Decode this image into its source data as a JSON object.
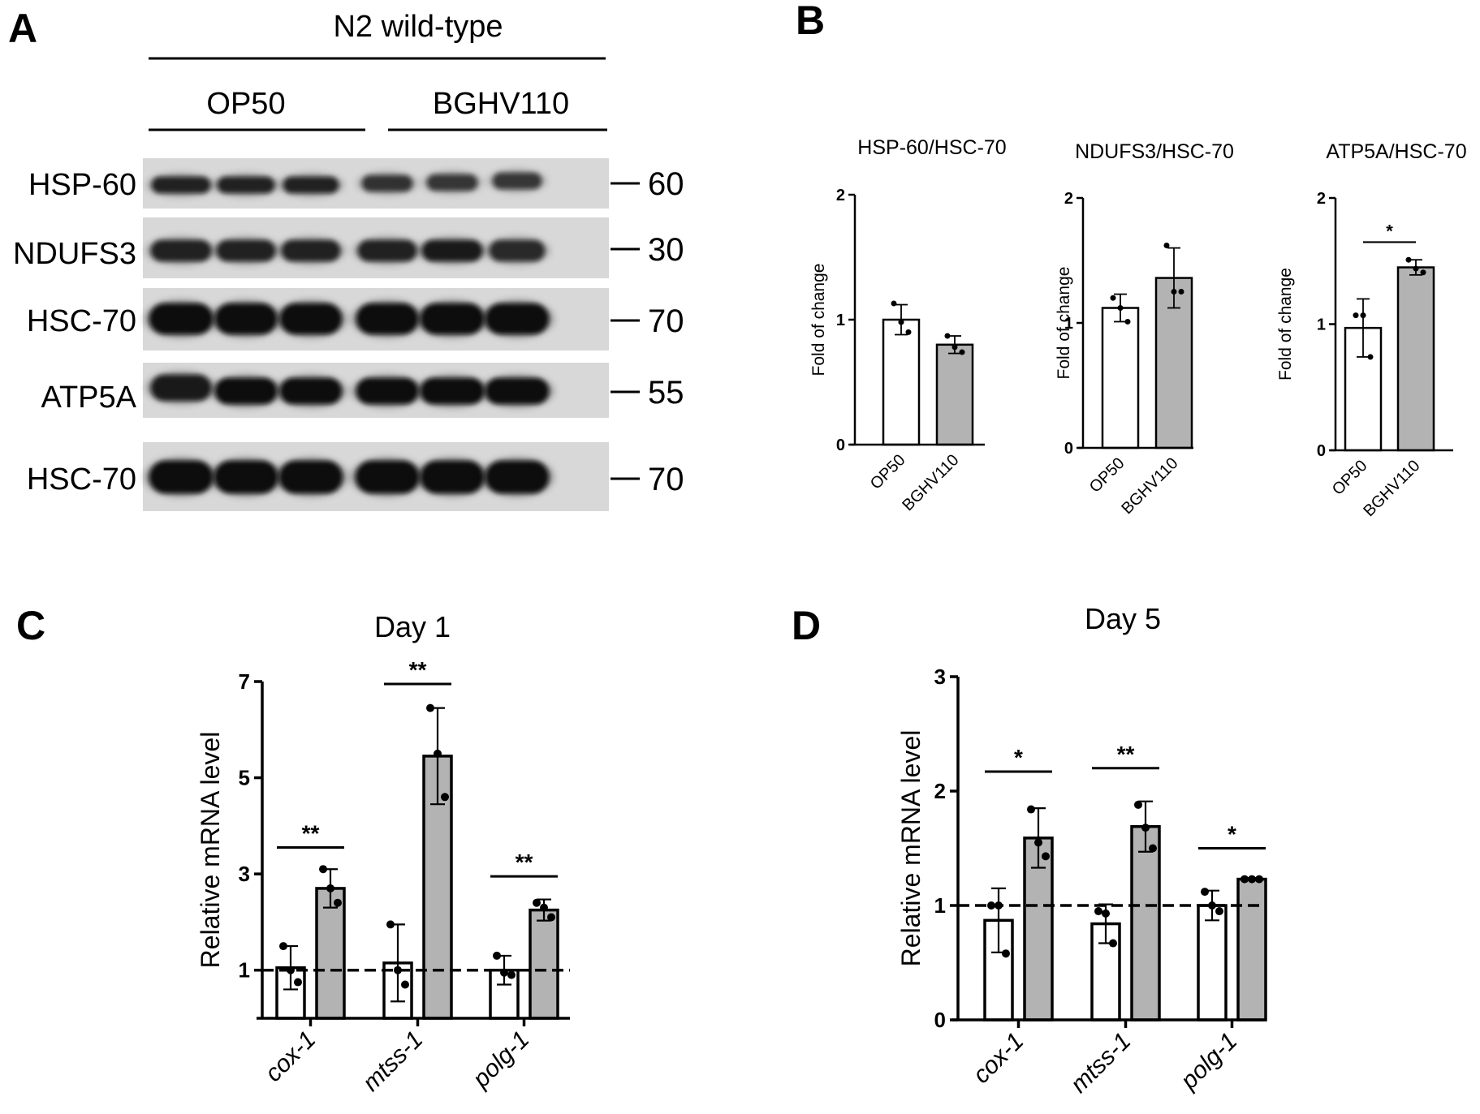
{
  "panel_labels": {
    "a": "A",
    "b": "B",
    "c": "C",
    "d": "D"
  },
  "western_blot": {
    "strain": "N2 wild-type",
    "conditions": [
      "OP50",
      "BGHV110"
    ],
    "rows": [
      {
        "protein": "HSP-60",
        "mw": "60"
      },
      {
        "protein": "NDUFS3",
        "mw": "30"
      },
      {
        "protein": "HSC-70",
        "mw": "70"
      },
      {
        "protein": "ATP5A",
        "mw": "55"
      },
      {
        "protein": "HSC-70",
        "mw": "70"
      }
    ]
  },
  "colors": {
    "control_bar": "#ffffff",
    "treated_bar": "#b3b3b3",
    "ink": "#000000"
  },
  "chart_data": [
    {
      "type": "bar",
      "panel": "B",
      "title": "HSP-60/HSC-70",
      "ylabel": "Fold of change",
      "categories": [
        "OP50",
        "BGHV110"
      ],
      "values": [
        1.0,
        0.8
      ],
      "errors": [
        0.12,
        0.07
      ],
      "points": [
        [
          1.13,
          0.98,
          0.9
        ],
        [
          0.87,
          0.78,
          0.74
        ]
      ],
      "yticks": [
        "0",
        "1",
        "2"
      ],
      "ylim": [
        0,
        2
      ],
      "significance": [],
      "bar_colors": [
        "#ffffff",
        "#b3b3b3"
      ]
    },
    {
      "type": "bar",
      "panel": "B",
      "title": "NDUFS3/HSC-70",
      "ylabel": "Fold of change",
      "categories": [
        "OP50",
        "BGHV110"
      ],
      "values": [
        1.12,
        1.36
      ],
      "errors": [
        0.11,
        0.24
      ],
      "points": [
        [
          1.2,
          1.12,
          1.01
        ],
        [
          1.62,
          1.25,
          1.25
        ]
      ],
      "yticks": [
        "0",
        "1",
        "2"
      ],
      "ylim": [
        0,
        2
      ],
      "significance": [],
      "bar_colors": [
        "#ffffff",
        "#b3b3b3"
      ]
    },
    {
      "type": "bar",
      "panel": "B",
      "title": "ATP5A/HSC-70",
      "ylabel": "Fold of change",
      "categories": [
        "OP50",
        "BGHV110"
      ],
      "values": [
        0.97,
        1.45
      ],
      "errors": [
        0.23,
        0.06
      ],
      "points": [
        [
          1.07,
          1.07,
          0.74
        ],
        [
          1.51,
          1.44,
          1.41
        ]
      ],
      "yticks": [
        "0",
        "1",
        "2"
      ],
      "ylim": [
        0,
        2
      ],
      "significance": [
        {
          "groups": [
            0,
            1
          ],
          "label": "*",
          "y": 1.65
        }
      ],
      "bar_colors": [
        "#ffffff",
        "#b3b3b3"
      ]
    },
    {
      "type": "bar",
      "panel": "C",
      "title": "Day 1",
      "ylabel": "Relative mRNA level",
      "categories": [
        "cox-1",
        "mtss-1",
        "polg-1"
      ],
      "series": [
        {
          "values": [
            1.05,
            1.15,
            1.0
          ],
          "errors": [
            0.45,
            0.8,
            0.3
          ],
          "points": [
            [
              1.5,
              1.0,
              0.75
            ],
            [
              1.95,
              1.0,
              0.7
            ],
            [
              1.3,
              0.95,
              0.9
            ]
          ]
        },
        {
          "values": [
            2.7,
            5.45,
            2.25
          ],
          "errors": [
            0.4,
            1.0,
            0.22
          ],
          "points": [
            [
              3.1,
              2.7,
              2.4
            ],
            [
              6.45,
              5.5,
              4.6
            ],
            [
              2.4,
              2.3,
              2.1
            ]
          ]
        }
      ],
      "reference_line": 1,
      "yticks": [
        "1",
        "3",
        "5",
        "7"
      ],
      "ylim": [
        0,
        7
      ],
      "significance": [
        {
          "category": 0,
          "label": "**",
          "y": 3.55
        },
        {
          "category": 1,
          "label": "**",
          "y": 6.95
        },
        {
          "category": 2,
          "label": "**",
          "y": 2.95
        }
      ],
      "bar_colors": [
        "#ffffff",
        "#b3b3b3"
      ]
    },
    {
      "type": "bar",
      "panel": "D",
      "title": "Day 5",
      "ylabel": "Relative mRNA level",
      "categories": [
        "cox-1",
        "mtss-1",
        "polg-1"
      ],
      "series": [
        {
          "values": [
            0.87,
            0.84,
            1.0
          ],
          "errors": [
            0.28,
            0.17,
            0.13
          ],
          "points": [
            [
              1.0,
              1.0,
              0.58
            ],
            [
              0.95,
              0.93,
              0.67
            ],
            [
              1.12,
              1.0,
              0.95
            ]
          ]
        },
        {
          "values": [
            1.59,
            1.69,
            1.23
          ],
          "errors": [
            0.26,
            0.22,
            0.01
          ],
          "points": [
            [
              1.84,
              1.55,
              1.43
            ],
            [
              1.88,
              1.68,
              1.5
            ],
            [
              1.23,
              1.23,
              1.23
            ]
          ]
        }
      ],
      "reference_line": 1,
      "yticks": [
        "0",
        "1",
        "2",
        "3"
      ],
      "ylim": [
        0,
        3
      ],
      "significance": [
        {
          "category": 0,
          "label": "*",
          "y": 2.17
        },
        {
          "category": 1,
          "label": "**",
          "y": 2.2
        },
        {
          "category": 2,
          "label": "*",
          "y": 1.5
        }
      ],
      "bar_colors": [
        "#ffffff",
        "#b3b3b3"
      ]
    }
  ]
}
